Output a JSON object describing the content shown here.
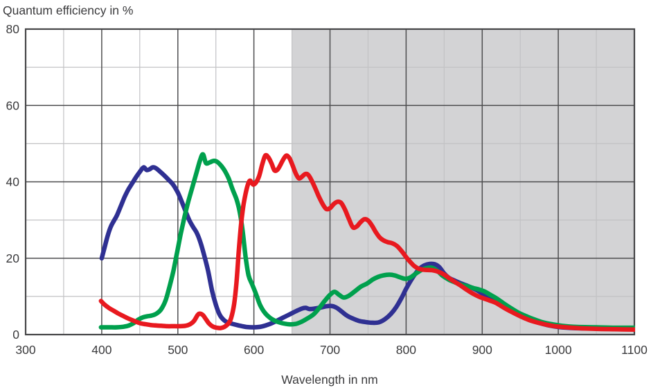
{
  "title": "Quantum efficiency in %",
  "xlabel": "Wavelength in nm",
  "colors": {
    "background": "#ffffff",
    "text": "#3a3a3c",
    "frame": "#454547",
    "grid_major": "#4d4d4f",
    "grid_minor": "#c2c2c4",
    "shade": "#d3d3d5",
    "blue_curve": "#2f3092",
    "green_curve": "#00a04d",
    "red_curve": "#e8191f"
  },
  "chart_data": {
    "type": "line",
    "title": "Quantum efficiency in %",
    "xlabel": "Wavelength in nm",
    "ylabel": "Quantum efficiency in %",
    "xlim": [
      300,
      1100
    ],
    "ylim": [
      0,
      80
    ],
    "x_ticks": [
      300,
      400,
      500,
      600,
      700,
      800,
      900,
      1000,
      1100
    ],
    "y_ticks": [
      0,
      20,
      40,
      60,
      80
    ],
    "x_minor_step": 50,
    "y_minor_step": 10,
    "grid": true,
    "legend": "none",
    "shaded_region": {
      "x_start": 650,
      "x_end": 1100
    },
    "series": [
      {
        "name": "blue-channel",
        "color": "#2f3092",
        "points": [
          [
            400,
            20
          ],
          [
            404,
            23
          ],
          [
            408,
            26
          ],
          [
            412,
            28.3
          ],
          [
            416,
            29.8
          ],
          [
            420,
            31.2
          ],
          [
            425,
            33.6
          ],
          [
            430,
            36
          ],
          [
            435,
            38
          ],
          [
            440,
            39.6
          ],
          [
            445,
            41.2
          ],
          [
            450,
            42.6
          ],
          [
            455,
            43.8
          ],
          [
            459,
            43.1
          ],
          [
            463,
            43.3
          ],
          [
            467,
            43.8
          ],
          [
            471,
            43.6
          ],
          [
            476,
            42.8
          ],
          [
            482,
            41.7
          ],
          [
            488,
            40.5
          ],
          [
            494,
            39.2
          ],
          [
            500,
            37.2
          ],
          [
            505,
            34.9
          ],
          [
            510,
            32.4
          ],
          [
            515,
            30
          ],
          [
            520,
            28.2
          ],
          [
            525,
            26.6
          ],
          [
            530,
            24
          ],
          [
            535,
            20.5
          ],
          [
            540,
            16.5
          ],
          [
            545,
            11.5
          ],
          [
            550,
            7.8
          ],
          [
            555,
            5.2
          ],
          [
            560,
            3.9
          ],
          [
            565,
            3.2
          ],
          [
            572,
            2.8
          ],
          [
            580,
            2.4
          ],
          [
            590,
            2
          ],
          [
            600,
            1.9
          ],
          [
            610,
            2.1
          ],
          [
            620,
            2.7
          ],
          [
            629,
            3.5
          ],
          [
            638,
            4.4
          ],
          [
            647,
            5.3
          ],
          [
            656,
            6.2
          ],
          [
            663,
            6.8
          ],
          [
            668,
            7
          ],
          [
            673,
            6.7
          ],
          [
            680,
            6.8
          ],
          [
            688,
            7.1
          ],
          [
            695,
            7.4
          ],
          [
            702,
            7.5
          ],
          [
            708,
            7.1
          ],
          [
            715,
            6.1
          ],
          [
            722,
            5
          ],
          [
            730,
            4.2
          ],
          [
            738,
            3.6
          ],
          [
            746,
            3.3
          ],
          [
            755,
            3.1
          ],
          [
            764,
            3.2
          ],
          [
            772,
            4
          ],
          [
            780,
            5.4
          ],
          [
            787,
            7.2
          ],
          [
            794,
            9.6
          ],
          [
            800,
            12
          ],
          [
            806,
            14.1
          ],
          [
            812,
            15.9
          ],
          [
            818,
            17.3
          ],
          [
            824,
            18.1
          ],
          [
            831,
            18.5
          ],
          [
            838,
            18.4
          ],
          [
            844,
            17.6
          ],
          [
            850,
            16
          ],
          [
            856,
            14.9
          ],
          [
            863,
            14.2
          ],
          [
            871,
            13.5
          ],
          [
            879,
            12.9
          ],
          [
            886,
            12.3
          ],
          [
            894,
            11.5
          ],
          [
            901,
            10.7
          ],
          [
            908,
            10.2
          ],
          [
            916,
            9.5
          ],
          [
            926,
            8.1
          ],
          [
            936,
            6.8
          ],
          [
            946,
            5.6
          ],
          [
            956,
            4.5
          ],
          [
            966,
            3.6
          ],
          [
            976,
            3
          ],
          [
            988,
            2.4
          ],
          [
            1000,
            2
          ],
          [
            1020,
            1.7
          ],
          [
            1045,
            1.6
          ],
          [
            1070,
            1.5
          ],
          [
            1100,
            1.5
          ]
        ]
      },
      {
        "name": "green-channel",
        "color": "#00a04d",
        "points": [
          [
            399,
            1.9
          ],
          [
            410,
            1.9
          ],
          [
            420,
            1.9
          ],
          [
            430,
            2.1
          ],
          [
            436,
            2.4
          ],
          [
            442,
            3
          ],
          [
            448,
            3.9
          ],
          [
            454,
            4.5
          ],
          [
            460,
            4.8
          ],
          [
            466,
            5
          ],
          [
            472,
            5.5
          ],
          [
            478,
            6.6
          ],
          [
            484,
            9
          ],
          [
            489,
            12.5
          ],
          [
            494,
            16.5
          ],
          [
            499,
            21.5
          ],
          [
            504,
            26.5
          ],
          [
            509,
            31
          ],
          [
            514,
            35
          ],
          [
            519,
            38.5
          ],
          [
            524,
            42
          ],
          [
            529,
            45.5
          ],
          [
            533,
            47.2
          ],
          [
            537,
            44.9
          ],
          [
            542,
            45.1
          ],
          [
            547,
            45.5
          ],
          [
            552,
            45.2
          ],
          [
            557,
            44.2
          ],
          [
            562,
            42.8
          ],
          [
            567,
            40.8
          ],
          [
            572,
            38
          ],
          [
            577,
            35.5
          ],
          [
            581,
            32.5
          ],
          [
            585,
            27.5
          ],
          [
            589,
            20.5
          ],
          [
            593,
            15.5
          ],
          [
            598,
            13
          ],
          [
            603,
            10.5
          ],
          [
            608,
            7.8
          ],
          [
            614,
            5.8
          ],
          [
            621,
            4.4
          ],
          [
            629,
            3.5
          ],
          [
            637,
            3
          ],
          [
            646,
            2.7
          ],
          [
            655,
            2.8
          ],
          [
            663,
            3.4
          ],
          [
            671,
            4.3
          ],
          [
            679,
            5.4
          ],
          [
            686,
            7
          ],
          [
            693,
            8.8
          ],
          [
            700,
            10.4
          ],
          [
            706,
            11.2
          ],
          [
            712,
            10.4
          ],
          [
            718,
            9.7
          ],
          [
            725,
            10.2
          ],
          [
            733,
            11.4
          ],
          [
            741,
            12.6
          ],
          [
            749,
            13.4
          ],
          [
            756,
            14.4
          ],
          [
            763,
            15.1
          ],
          [
            770,
            15.5
          ],
          [
            778,
            15.7
          ],
          [
            785,
            15.5
          ],
          [
            792,
            15
          ],
          [
            799,
            14.6
          ],
          [
            806,
            15
          ],
          [
            813,
            16
          ],
          [
            820,
            16.9
          ],
          [
            827,
            17.4
          ],
          [
            834,
            17.5
          ],
          [
            841,
            16.7
          ],
          [
            848,
            15.4
          ],
          [
            856,
            14.4
          ],
          [
            864,
            13.7
          ],
          [
            872,
            13.1
          ],
          [
            880,
            12.7
          ],
          [
            888,
            12.2
          ],
          [
            896,
            11.8
          ],
          [
            903,
            11.3
          ],
          [
            910,
            10.5
          ],
          [
            918,
            9.6
          ],
          [
            928,
            8.2
          ],
          [
            938,
            6.9
          ],
          [
            948,
            5.7
          ],
          [
            958,
            4.8
          ],
          [
            968,
            4
          ],
          [
            980,
            3.2
          ],
          [
            992,
            2.7
          ],
          [
            1005,
            2.3
          ],
          [
            1025,
            2
          ],
          [
            1050,
            1.9
          ],
          [
            1075,
            1.8
          ],
          [
            1100,
            1.8
          ]
        ]
      },
      {
        "name": "red-channel",
        "color": "#e8191f",
        "points": [
          [
            399,
            8.8
          ],
          [
            404,
            7.8
          ],
          [
            410,
            6.9
          ],
          [
            416,
            6.2
          ],
          [
            422,
            5.5
          ],
          [
            428,
            4.9
          ],
          [
            434,
            4.3
          ],
          [
            440,
            3.8
          ],
          [
            446,
            3.3
          ],
          [
            452,
            2.9
          ],
          [
            458,
            2.7
          ],
          [
            464,
            2.5
          ],
          [
            470,
            2.4
          ],
          [
            478,
            2.3
          ],
          [
            486,
            2.2
          ],
          [
            494,
            2.2
          ],
          [
            502,
            2.2
          ],
          [
            510,
            2.3
          ],
          [
            516,
            2.7
          ],
          [
            521,
            3.5
          ],
          [
            526,
            5.1
          ],
          [
            529,
            5.5
          ],
          [
            533,
            5.1
          ],
          [
            537,
            4
          ],
          [
            541,
            2.9
          ],
          [
            546,
            2.1
          ],
          [
            551,
            1.8
          ],
          [
            556,
            1.7
          ],
          [
            561,
            2
          ],
          [
            566,
            2.8
          ],
          [
            570,
            4.3
          ],
          [
            574,
            8
          ],
          [
            577,
            13.5
          ],
          [
            580,
            21.5
          ],
          [
            583,
            28.5
          ],
          [
            586,
            33.5
          ],
          [
            589,
            36.8
          ],
          [
            592,
            39.2
          ],
          [
            595,
            40.3
          ],
          [
            599,
            39.3
          ],
          [
            603,
            39.9
          ],
          [
            607,
            41.6
          ],
          [
            611,
            44.6
          ],
          [
            615,
            46.9
          ],
          [
            619,
            46.4
          ],
          [
            623,
            44.9
          ],
          [
            627,
            43
          ],
          [
            631,
            43.2
          ],
          [
            635,
            44.5
          ],
          [
            639,
            46
          ],
          [
            643,
            46.9
          ],
          [
            647,
            46.1
          ],
          [
            651,
            44.2
          ],
          [
            655,
            42.2
          ],
          [
            659,
            40.9
          ],
          [
            663,
            41.3
          ],
          [
            667,
            42
          ],
          [
            671,
            41.9
          ],
          [
            675,
            40.7
          ],
          [
            680,
            38.6
          ],
          [
            685,
            36.3
          ],
          [
            690,
            34.3
          ],
          [
            695,
            32.9
          ],
          [
            700,
            33.1
          ],
          [
            705,
            34.2
          ],
          [
            710,
            34.8
          ],
          [
            715,
            34.4
          ],
          [
            720,
            32.6
          ],
          [
            725,
            30.2
          ],
          [
            730,
            28.1
          ],
          [
            735,
            28.3
          ],
          [
            740,
            29.4
          ],
          [
            745,
            30.2
          ],
          [
            750,
            29.9
          ],
          [
            755,
            28.6
          ],
          [
            760,
            26.9
          ],
          [
            765,
            25.5
          ],
          [
            770,
            24.7
          ],
          [
            776,
            24.2
          ],
          [
            782,
            23.9
          ],
          [
            788,
            23.2
          ],
          [
            794,
            21.9
          ],
          [
            800,
            20.3
          ],
          [
            806,
            18.9
          ],
          [
            811,
            17.9
          ],
          [
            816,
            17.3
          ],
          [
            822,
            17
          ],
          [
            829,
            16.9
          ],
          [
            836,
            16.8
          ],
          [
            843,
            16.4
          ],
          [
            850,
            15.7
          ],
          [
            857,
            14.7
          ],
          [
            864,
            13.8
          ],
          [
            872,
            12.8
          ],
          [
            880,
            11.7
          ],
          [
            888,
            10.7
          ],
          [
            896,
            9.9
          ],
          [
            903,
            9.4
          ],
          [
            910,
            8.9
          ],
          [
            918,
            8.3
          ],
          [
            928,
            7.1
          ],
          [
            938,
            6
          ],
          [
            948,
            5
          ],
          [
            958,
            4.1
          ],
          [
            968,
            3.4
          ],
          [
            980,
            2.8
          ],
          [
            992,
            2.3
          ],
          [
            1005,
            2
          ],
          [
            1025,
            1.7
          ],
          [
            1050,
            1.5
          ],
          [
            1075,
            1.4
          ],
          [
            1100,
            1.3
          ]
        ]
      }
    ]
  }
}
